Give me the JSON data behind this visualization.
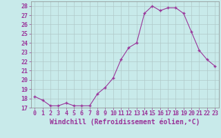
{
  "x": [
    0,
    1,
    2,
    3,
    4,
    5,
    6,
    7,
    8,
    9,
    10,
    11,
    12,
    13,
    14,
    15,
    16,
    17,
    18,
    19,
    20,
    21,
    22,
    23
  ],
  "y": [
    18.2,
    17.8,
    17.2,
    17.2,
    17.5,
    17.2,
    17.2,
    17.2,
    18.5,
    19.2,
    20.2,
    22.2,
    23.5,
    24.0,
    27.2,
    28.0,
    27.5,
    27.8,
    27.8,
    27.2,
    25.2,
    23.2,
    22.2,
    21.5
  ],
  "line_color": "#993399",
  "marker": "+",
  "xlabel": "Windchill (Refroidissement éolien,°C)",
  "ylim": [
    17,
    28.5
  ],
  "xlim": [
    -0.5,
    23.5
  ],
  "yticks": [
    17,
    18,
    19,
    20,
    21,
    22,
    23,
    24,
    25,
    26,
    27,
    28
  ],
  "xticks": [
    0,
    1,
    2,
    3,
    4,
    5,
    6,
    7,
    8,
    9,
    10,
    11,
    12,
    13,
    14,
    15,
    16,
    17,
    18,
    19,
    20,
    21,
    22,
    23
  ],
  "grid_color": "#b0c8c8",
  "bg_color": "#c8eaea",
  "tick_color": "#993399",
  "xlabel_color": "#993399",
  "xlabel_fontsize": 7.0,
  "tick_fontsize": 6.0
}
